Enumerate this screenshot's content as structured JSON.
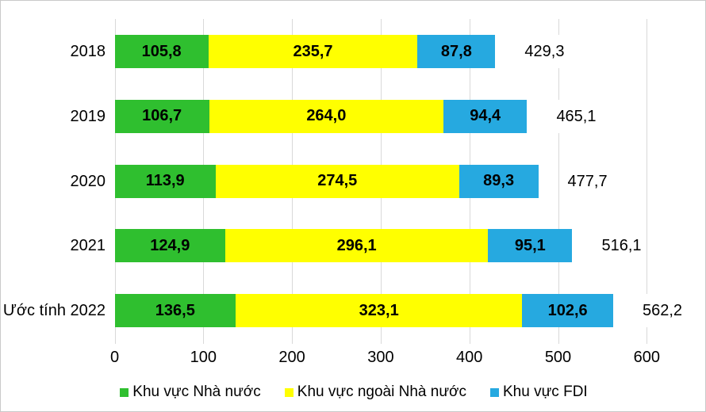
{
  "chart_data": {
    "type": "bar",
    "orientation": "horizontal",
    "stacked": true,
    "title": "",
    "categories": [
      "2018",
      "2019",
      "2020",
      "2021",
      "Ước tính 2022"
    ],
    "series": [
      {
        "name": "Khu vực Nhà nước",
        "color": "#2fbf2f",
        "values": [
          105.8,
          106.7,
          113.9,
          124.9,
          136.5
        ],
        "labels": [
          "105,8",
          "106,7",
          "113,9",
          "124,9",
          "136,5"
        ]
      },
      {
        "name": "Khu vực ngoài Nhà nước",
        "color": "#ffff00",
        "values": [
          235.7,
          264.0,
          274.5,
          296.1,
          323.1
        ],
        "labels": [
          "235,7",
          "264,0",
          "274,5",
          "296,1",
          "323,1"
        ]
      },
      {
        "name": "Khu vực FDI",
        "color": "#26a9e0",
        "values": [
          87.8,
          94.4,
          89.3,
          95.1,
          102.6
        ],
        "labels": [
          "87,8",
          "94,4",
          "89,3",
          "95,1",
          "102,6"
        ]
      }
    ],
    "totals": [
      429.3,
      465.1,
      477.7,
      516.1,
      562.2
    ],
    "total_labels": [
      "429,3",
      "465,1",
      "477,7",
      "516,1",
      "562,2"
    ],
    "x_axis": {
      "min": 0,
      "max": 600,
      "tick_step": 100,
      "ticks": [
        "0",
        "100",
        "200",
        "300",
        "400",
        "500",
        "600"
      ]
    },
    "legend": {
      "position": "bottom",
      "entries": [
        "Khu vực Nhà nước",
        "Khu vực ngoài Nhà nước",
        "Khu vực FDI"
      ]
    },
    "grid": true,
    "colors": {
      "gridline": "#d9d9d9",
      "text": "#000000",
      "background": "#ffffff",
      "frame_border": "#c9c9c9"
    }
  }
}
